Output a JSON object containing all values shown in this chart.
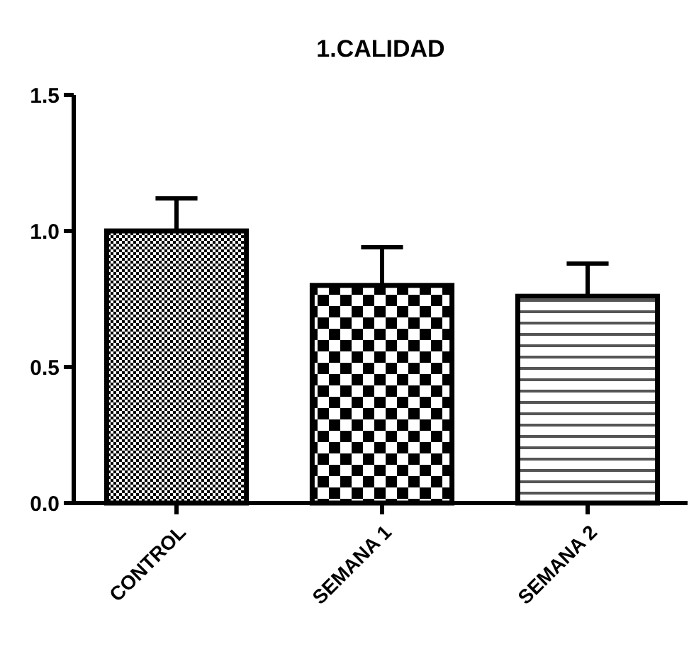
{
  "chart_data": {
    "type": "bar",
    "title": "1.CALIDAD",
    "categories": [
      "CONTROL",
      "SEMANA 1",
      "SEMANA 2"
    ],
    "values": [
      1.0,
      0.8,
      0.76
    ],
    "errors": [
      0.12,
      0.14,
      0.12
    ],
    "colors": [
      "#000000",
      "#000000",
      "#000000"
    ],
    "ylim": [
      0,
      1.5
    ],
    "yticks": [
      {
        "value": 0,
        "label": "0.0"
      },
      {
        "value": 0.5,
        "label": "0.5"
      },
      {
        "value": 1,
        "label": "1.0"
      },
      {
        "value": 1.5,
        "label": "1.5"
      }
    ],
    "grid": false
  }
}
